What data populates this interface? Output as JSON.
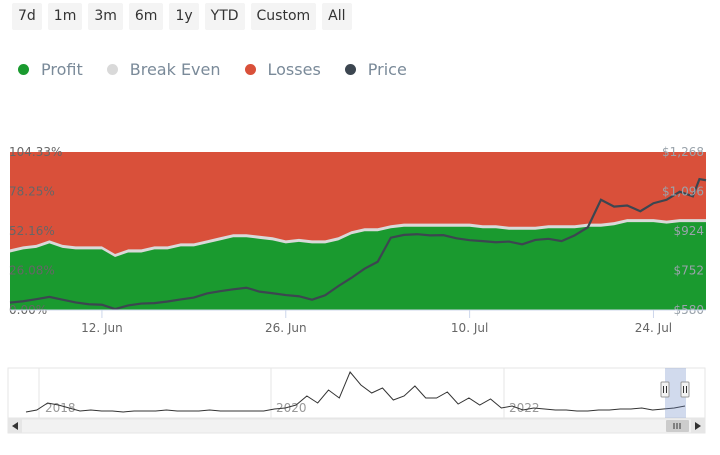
{
  "range_buttons": [
    "7d",
    "1m",
    "3m",
    "6m",
    "1y",
    "YTD",
    "Custom",
    "All"
  ],
  "legend": [
    {
      "label": "Profit",
      "color": "#1a9a2f"
    },
    {
      "label": "Break Even",
      "color": "#d9d9d9"
    },
    {
      "label": "Losses",
      "color": "#d9503a"
    },
    {
      "label": "Price",
      "color": "#3c4650"
    }
  ],
  "navigator": {
    "year_labels": [
      "2018",
      "2020",
      "2022"
    ],
    "left_icon": "triangle-left-icon",
    "right_icon": "triangle-right-icon",
    "handle_icon": "grip-icon"
  },
  "chart_data": {
    "type": "area",
    "y_left_ticks": [
      "104.33%",
      "78.25%",
      "52.16%",
      "26.08%",
      "0.00%"
    ],
    "y_left_range": [
      0,
      104.33
    ],
    "y_right_ticks": [
      "$1,268",
      "$1,096",
      "$924",
      "$752",
      "$580"
    ],
    "y_right_range": [
      580,
      1268
    ],
    "x_ticks": [
      {
        "label": "12. Jun",
        "day": 12
      },
      {
        "label": "26. Jun",
        "day": 26
      },
      {
        "label": "10. Jul",
        "day": 40
      },
      {
        "label": "24. Jul",
        "day": 54
      }
    ],
    "x_range_days": [
      5,
      58
    ],
    "series": [
      {
        "name": "Profit",
        "color": "#1a9a2f",
        "stack": "bottom",
        "x": [
          5,
          6,
          7,
          8,
          9,
          10,
          11,
          12,
          13,
          14,
          15,
          16,
          17,
          18,
          19,
          20,
          21,
          22,
          23,
          24,
          25,
          26,
          27,
          28,
          29,
          30,
          31,
          32,
          33,
          34,
          35,
          36,
          37,
          38,
          39,
          40,
          41,
          42,
          43,
          44,
          45,
          46,
          47,
          48,
          49,
          50,
          51,
          52,
          53,
          54,
          55,
          56,
          57,
          58
        ],
        "y": [
          38,
          40,
          41,
          44,
          41,
          40,
          40,
          40,
          35,
          38,
          38,
          40,
          40,
          42,
          42,
          44,
          46,
          48,
          48,
          47,
          46,
          44,
          45,
          44,
          44,
          46,
          50,
          52,
          52,
          54,
          55,
          55,
          55,
          55,
          55,
          55,
          54,
          54,
          53,
          53,
          53,
          54,
          54,
          54,
          55,
          55,
          56,
          58,
          58,
          58,
          57,
          58,
          58,
          58
        ]
      },
      {
        "name": "Break Even",
        "color": "#d9d9d9",
        "stack": "middle",
        "x": [
          5,
          58
        ],
        "y": [
          2,
          2
        ]
      },
      {
        "name": "Losses",
        "color": "#d9503a",
        "stack": "top",
        "x": [
          5,
          58
        ],
        "y": [
          104.33,
          104.33
        ]
      },
      {
        "name": "Price",
        "color": "#3c4650",
        "axis": "right",
        "x": [
          5,
          6,
          7,
          8,
          9,
          10,
          11,
          12,
          13,
          14,
          15,
          16,
          17,
          18,
          19,
          20,
          21,
          22,
          23,
          24,
          25,
          26,
          27,
          28,
          29,
          30,
          31,
          32,
          33,
          34,
          35,
          36,
          37,
          38,
          39,
          40,
          41,
          42,
          43,
          44,
          45,
          46,
          47,
          48,
          49,
          50,
          51,
          52,
          53,
          54,
          55,
          56,
          57,
          57.5,
          58
        ],
        "y": [
          612,
          618,
          627,
          637,
          625,
          613,
          605,
          603,
          584,
          600,
          608,
          610,
          617,
          626,
          634,
          652,
          662,
          670,
          677,
          660,
          653,
          645,
          640,
          625,
          644,
          684,
          720,
          760,
          790,
          895,
          907,
          910,
          905,
          906,
          892,
          884,
          880,
          875,
          878,
          866,
          885,
          890,
          880,
          905,
          940,
          1060,
          1030,
          1035,
          1010,
          1045,
          1060,
          1095,
          1075,
          1150,
          1145
        ]
      }
    ],
    "grid": false,
    "legend_position": "top-left"
  }
}
